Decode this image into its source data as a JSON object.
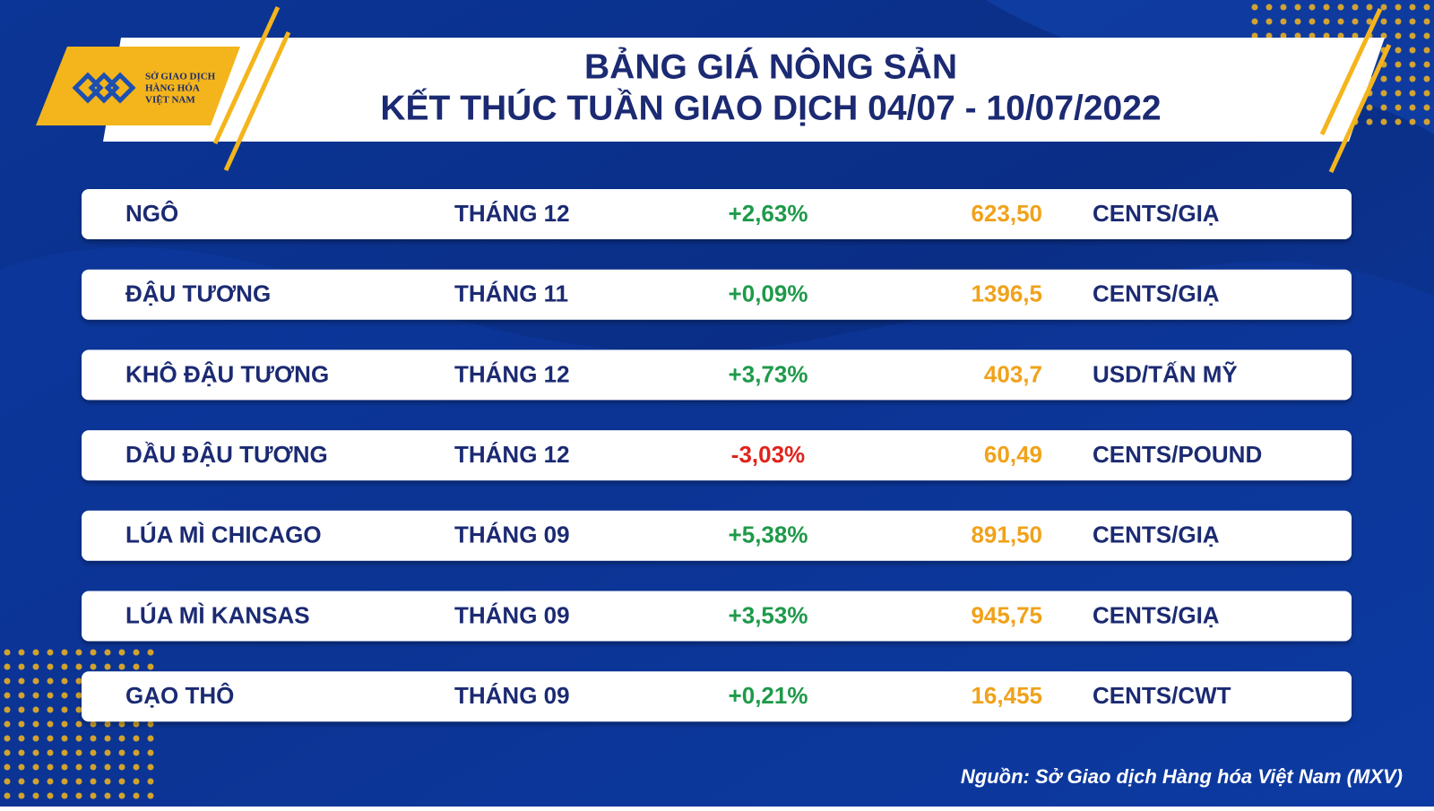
{
  "header": {
    "logo": [
      "SỞ GIAO DỊCH",
      "HÀNG HÓA",
      "VIỆT NAM"
    ],
    "title": [
      "BẢNG GIÁ NÔNG SẢN",
      "KẾT THÚC TUẦN GIAO DỊCH 04/07 - 10/07/2022"
    ]
  },
  "table": {
    "rows": [
      {
        "commodity": "NGÔ",
        "month": "THÁNG 12",
        "change": "+2,63%",
        "price": "623,50",
        "unit": "CENTS/GIẠ"
      },
      {
        "commodity": "ĐẬU TƯƠNG",
        "month": "THÁNG 11",
        "change": "+0,09%",
        "price": "1396,5",
        "unit": "CENTS/GIẠ"
      },
      {
        "commodity": "KHÔ ĐẬU TƯƠNG",
        "month": "THÁNG 12",
        "change": "+3,73%",
        "price": "403,7",
        "unit": "USD/TẤN MỸ"
      },
      {
        "commodity": "DẦU ĐẬU TƯƠNG",
        "month": "THÁNG 12",
        "change": "-3,03%",
        "price": "60,49",
        "unit": "CENTS/POUND"
      },
      {
        "commodity": "LÚA MÌ CHICAGO",
        "month": "THÁNG 09",
        "change": "+5,38%",
        "price": "891,50",
        "unit": "CENTS/GIẠ"
      },
      {
        "commodity": "LÚA MÌ KANSAS",
        "month": "THÁNG 09",
        "change": "+3,53%",
        "price": "945,75",
        "unit": "CENTS/GIẠ"
      },
      {
        "commodity": "GẠO THÔ",
        "month": "THÁNG 09",
        "change": "+0,21%",
        "price": "16,455",
        "unit": "CENTS/CWT"
      }
    ],
    "up_color": "#1e9a4a",
    "down_color": "#e0231c",
    "price_color": "#f0a21a"
  },
  "source": "Nguồn: Sở Giao dịch Hàng hóa Việt Nam (MXV)"
}
